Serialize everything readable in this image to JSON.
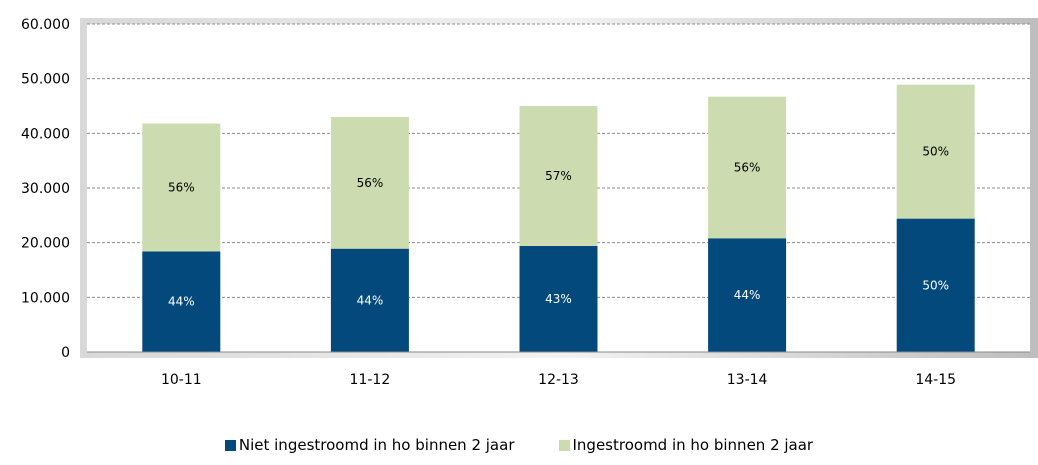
{
  "chart_data": {
    "type": "bar",
    "stacked": true,
    "categories": [
      "10-11",
      "11-12",
      "12-13",
      "13-14",
      "14-15"
    ],
    "series": [
      {
        "name": "Niet ingestroomd in ho binnen 2 jaar",
        "color": "#03497c",
        "label_color": "#ffffff",
        "values": [
          18400,
          18900,
          19400,
          20800,
          24400
        ],
        "labels": [
          "44%",
          "44%",
          "43%",
          "44%",
          "50%"
        ]
      },
      {
        "name": "Ingestroomd in ho binnen 2 jaar",
        "color": "#cddcb0",
        "label_color": "#000000",
        "values": [
          23400,
          24100,
          25600,
          25900,
          24500
        ],
        "labels": [
          "56%",
          "56%",
          "57%",
          "56%",
          "50%"
        ]
      }
    ],
    "y_ticks": [
      "0",
      "10.000",
      "20.000",
      "30.000",
      "40.000",
      "50.000",
      "60.000"
    ],
    "ylim": [
      0,
      60000
    ],
    "grid": "dashed horizontal",
    "legend_position": "bottom"
  }
}
